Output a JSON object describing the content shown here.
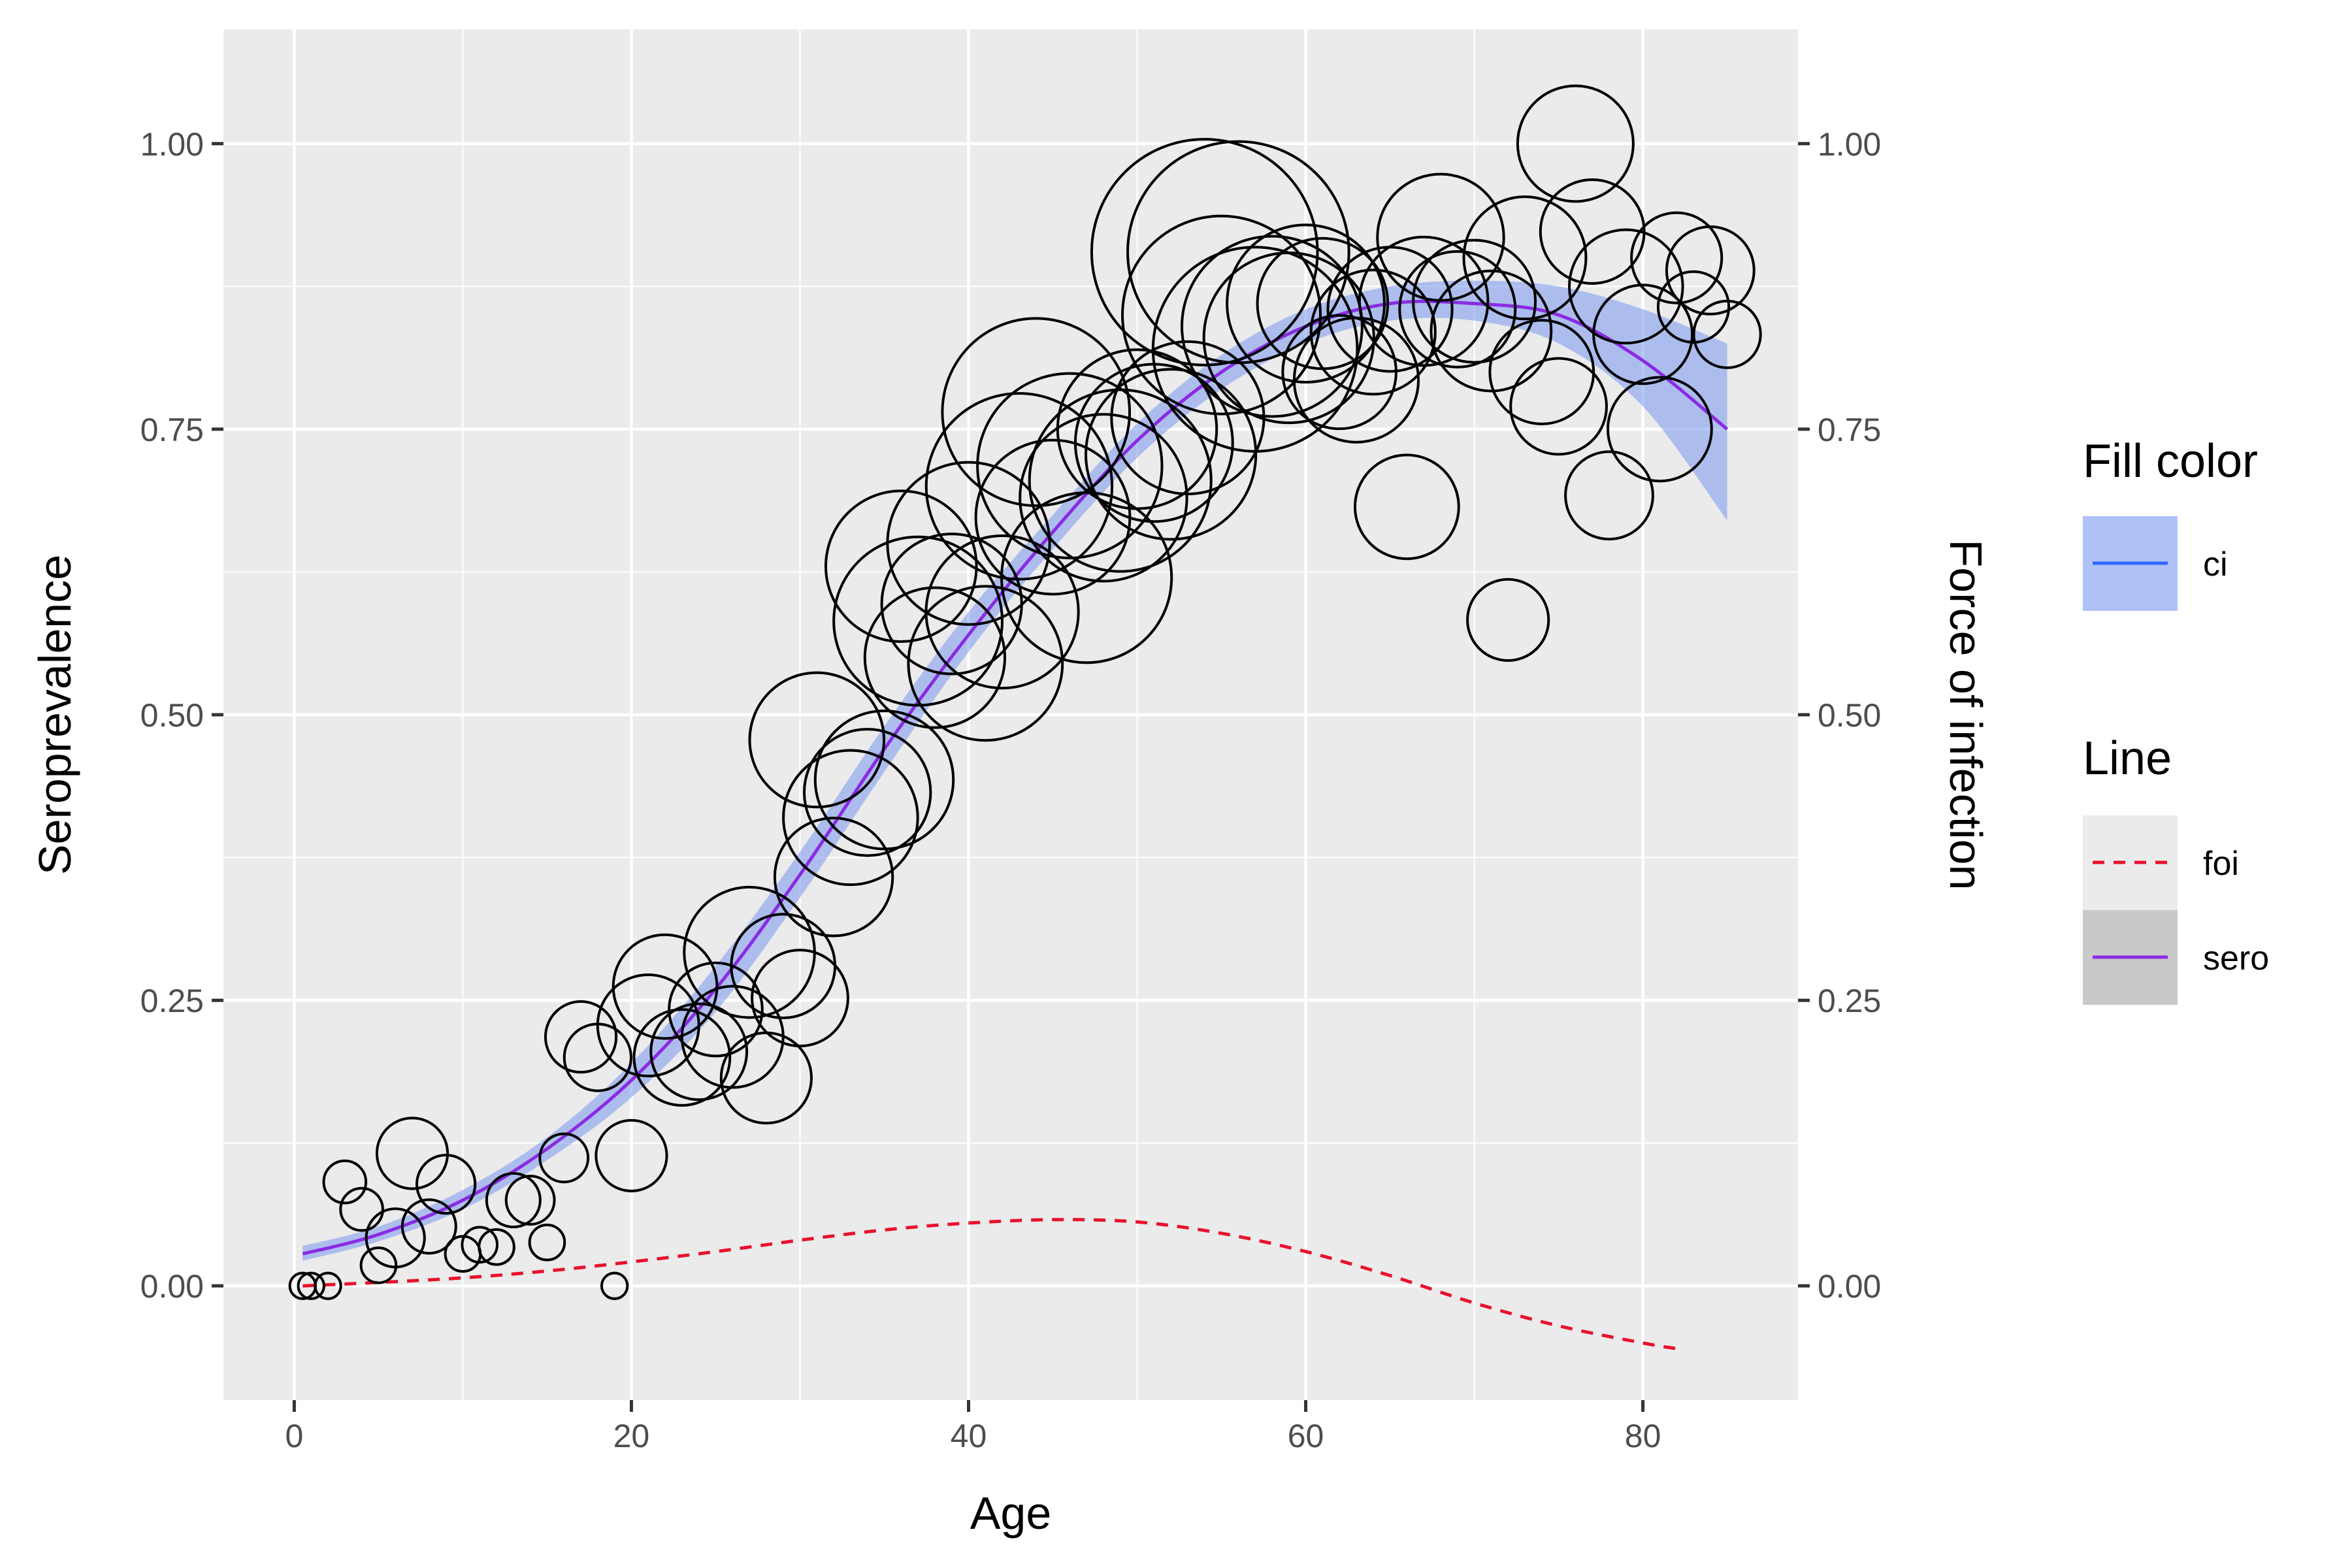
{
  "chart_data": {
    "type": "scatter",
    "xlabel": "Age",
    "ylabel": "Seroprevalence",
    "ylabel_right": "Force of infection",
    "xlim": [
      -4.2,
      89.2
    ],
    "ylim": [
      -0.1,
      1.1
    ],
    "x_ticks": [
      0,
      20,
      40,
      60,
      80
    ],
    "x_tick_labels": [
      "0",
      "20",
      "40",
      "60",
      "80"
    ],
    "y_ticks": [
      0,
      0.25,
      0.5,
      0.75,
      1.0
    ],
    "y_tick_labels": [
      "0.00",
      "0.25",
      "0.50",
      "0.75",
      "1.00"
    ],
    "grid": true,
    "legend_position": "right",
    "legends": [
      {
        "title": "Fill color",
        "items": [
          {
            "label": "ci",
            "kind": "ribbon",
            "fill": "#6d8ff0",
            "line": "#3366ff"
          }
        ]
      },
      {
        "title": "Line",
        "items": [
          {
            "label": "foi",
            "kind": "dashed",
            "color": "#e8112d"
          },
          {
            "label": "sero",
            "kind": "solid",
            "color": "#8a2be2"
          }
        ]
      }
    ],
    "colors": {
      "panel": "#ebebeb",
      "grid": "#ffffff",
      "points": "#000000",
      "sero_line": "#8a2be2",
      "foi_line": "#e8112d",
      "ci_fill": "#6d8ff0"
    },
    "series": [
      {
        "name": "sero",
        "type": "line",
        "x": [
          0.5,
          5,
          10,
          15,
          20,
          25,
          30,
          35,
          40,
          45,
          50,
          55,
          60,
          65,
          70,
          75,
          80,
          85
        ],
        "y": [
          0.028,
          0.045,
          0.075,
          0.12,
          0.18,
          0.26,
          0.36,
          0.47,
          0.57,
          0.66,
          0.74,
          0.8,
          0.84,
          0.86,
          0.86,
          0.85,
          0.81,
          0.75
        ]
      },
      {
        "name": "ci",
        "type": "area",
        "x": [
          0.5,
          5,
          10,
          15,
          20,
          25,
          30,
          35,
          40,
          45,
          50,
          55,
          60,
          65,
          70,
          75,
          80,
          85
        ],
        "lower": [
          0.022,
          0.039,
          0.067,
          0.11,
          0.165,
          0.24,
          0.34,
          0.45,
          0.555,
          0.645,
          0.725,
          0.785,
          0.825,
          0.845,
          0.845,
          0.825,
          0.77,
          0.67
        ],
        "upper": [
          0.035,
          0.052,
          0.084,
          0.13,
          0.195,
          0.28,
          0.38,
          0.49,
          0.59,
          0.675,
          0.755,
          0.815,
          0.855,
          0.875,
          0.88,
          0.875,
          0.855,
          0.825
        ]
      },
      {
        "name": "foi",
        "type": "line",
        "dash": true,
        "x": [
          0.5,
          5,
          10,
          15,
          20,
          25,
          30,
          35,
          40,
          45,
          50,
          55,
          60,
          65,
          70,
          75,
          80,
          82
        ],
        "y": [
          0.0,
          0.003,
          0.007,
          0.013,
          0.021,
          0.03,
          0.04,
          0.049,
          0.055,
          0.058,
          0.056,
          0.046,
          0.03,
          0.009,
          -0.015,
          -0.035,
          -0.05,
          -0.055
        ]
      }
    ],
    "points": [
      {
        "x": 0.5,
        "y": 0.0,
        "n": 1
      },
      {
        "x": 1,
        "y": 0.0,
        "n": 1
      },
      {
        "x": 2,
        "y": 0.0,
        "n": 1
      },
      {
        "x": 3,
        "y": 0.091,
        "n": 3
      },
      {
        "x": 4,
        "y": 0.067,
        "n": 3
      },
      {
        "x": 5,
        "y": 0.018,
        "n": 2
      },
      {
        "x": 6,
        "y": 0.042,
        "n": 6
      },
      {
        "x": 7,
        "y": 0.116,
        "n": 9
      },
      {
        "x": 8,
        "y": 0.052,
        "n": 5
      },
      {
        "x": 9,
        "y": 0.089,
        "n": 6
      },
      {
        "x": 10,
        "y": 0.028,
        "n": 2
      },
      {
        "x": 11,
        "y": 0.036,
        "n": 2
      },
      {
        "x": 12,
        "y": 0.034,
        "n": 2
      },
      {
        "x": 13,
        "y": 0.075,
        "n": 5
      },
      {
        "x": 14,
        "y": 0.075,
        "n": 4
      },
      {
        "x": 15,
        "y": 0.038,
        "n": 2
      },
      {
        "x": 16,
        "y": 0.112,
        "n": 4
      },
      {
        "x": 17,
        "y": 0.218,
        "n": 9
      },
      {
        "x": 18,
        "y": 0.2,
        "n": 8
      },
      {
        "x": 19,
        "y": 0.0,
        "n": 1
      },
      {
        "x": 20,
        "y": 0.114,
        "n": 9
      },
      {
        "x": 21,
        "y": 0.228,
        "n": 19
      },
      {
        "x": 22,
        "y": 0.262,
        "n": 20
      },
      {
        "x": 23,
        "y": 0.2,
        "n": 17
      },
      {
        "x": 24,
        "y": 0.205,
        "n": 17
      },
      {
        "x": 25,
        "y": 0.242,
        "n": 16
      },
      {
        "x": 26,
        "y": 0.218,
        "n": 19
      },
      {
        "x": 27,
        "y": 0.292,
        "n": 32
      },
      {
        "x": 28,
        "y": 0.182,
        "n": 15
      },
      {
        "x": 29,
        "y": 0.28,
        "n": 20
      },
      {
        "x": 30,
        "y": 0.252,
        "n": 17
      },
      {
        "x": 31,
        "y": 0.478,
        "n": 34
      },
      {
        "x": 32,
        "y": 0.358,
        "n": 26
      },
      {
        "x": 33,
        "y": 0.41,
        "n": 34
      },
      {
        "x": 34,
        "y": 0.432,
        "n": 30
      },
      {
        "x": 35,
        "y": 0.443,
        "n": 36
      },
      {
        "x": 36,
        "y": 0.63,
        "n": 43
      },
      {
        "x": 37,
        "y": 0.582,
        "n": 54
      },
      {
        "x": 38,
        "y": 0.55,
        "n": 37
      },
      {
        "x": 39,
        "y": 0.597,
        "n": 37
      },
      {
        "x": 40,
        "y": 0.65,
        "n": 50
      },
      {
        "x": 41,
        "y": 0.545,
        "n": 45
      },
      {
        "x": 42,
        "y": 0.59,
        "n": 44
      },
      {
        "x": 43,
        "y": 0.7,
        "n": 66
      },
      {
        "x": 44,
        "y": 0.765,
        "n": 67
      },
      {
        "x": 45,
        "y": 0.673,
        "n": 45
      },
      {
        "x": 46,
        "y": 0.718,
        "n": 65
      },
      {
        "x": 47,
        "y": 0.62,
        "n": 55
      },
      {
        "x": 48,
        "y": 0.69,
        "n": 53
      },
      {
        "x": 49,
        "y": 0.705,
        "n": 63
      },
      {
        "x": 50,
        "y": 0.75,
        "n": 48
      },
      {
        "x": 51,
        "y": 0.738,
        "n": 47
      },
      {
        "x": 52,
        "y": 0.728,
        "n": 55
      },
      {
        "x": 53,
        "y": 0.76,
        "n": 44
      },
      {
        "x": 54,
        "y": 0.905,
        "n": 98
      },
      {
        "x": 55,
        "y": 0.85,
        "n": 75
      },
      {
        "x": 56,
        "y": 0.905,
        "n": 94
      },
      {
        "x": 57,
        "y": 0.82,
        "n": 80
      },
      {
        "x": 58,
        "y": 0.84,
        "n": 62
      },
      {
        "x": 59,
        "y": 0.83,
        "n": 55
      },
      {
        "x": 60,
        "y": 0.86,
        "n": 47
      },
      {
        "x": 61,
        "y": 0.86,
        "n": 32
      },
      {
        "x": 62,
        "y": 0.8,
        "n": 24
      },
      {
        "x": 63,
        "y": 0.793,
        "n": 29
      },
      {
        "x": 64,
        "y": 0.835,
        "n": 29
      },
      {
        "x": 65,
        "y": 0.855,
        "n": 29
      },
      {
        "x": 66,
        "y": 0.682,
        "n": 20
      },
      {
        "x": 67,
        "y": 0.862,
        "n": 31
      },
      {
        "x": 68,
        "y": 0.918,
        "n": 30
      },
      {
        "x": 69,
        "y": 0.855,
        "n": 25
      },
      {
        "x": 70,
        "y": 0.862,
        "n": 28
      },
      {
        "x": 71,
        "y": 0.836,
        "n": 27
      },
      {
        "x": 72,
        "y": 0.583,
        "n": 12
      },
      {
        "x": 73,
        "y": 0.9,
        "n": 28
      },
      {
        "x": 74,
        "y": 0.8,
        "n": 20
      },
      {
        "x": 75,
        "y": 0.77,
        "n": 17
      },
      {
        "x": 76,
        "y": 1.0,
        "n": 25
      },
      {
        "x": 77,
        "y": 0.923,
        "n": 20
      },
      {
        "x": 78,
        "y": 0.692,
        "n": 14
      },
      {
        "x": 79,
        "y": 0.875,
        "n": 24
      },
      {
        "x": 80,
        "y": 0.833,
        "n": 18
      },
      {
        "x": 81,
        "y": 0.75,
        "n": 20
      },
      {
        "x": 82,
        "y": 0.9,
        "n": 15
      },
      {
        "x": 83,
        "y": 0.857,
        "n": 9
      },
      {
        "x": 84,
        "y": 0.889,
        "n": 14
      },
      {
        "x": 85,
        "y": 0.833,
        "n": 8
      }
    ]
  }
}
